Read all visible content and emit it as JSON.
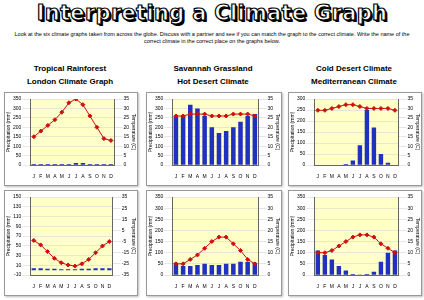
{
  "header": {
    "title": "Interpreting a Climate Graph",
    "instructions": "Look at the six climate graphs taken from across the globe.  Discuss with a partner and see if you can match the graph to the correct climate. Write the name of the correct climate in the correct place on the graphs below."
  },
  "climate_names": [
    "Tropical Rainforest",
    "Savannah Grassland",
    "Cold Desert Climate",
    "London Climate Graph",
    "Hot Desert Climate",
    "Mediterranean Climate"
  ],
  "chart_data": [
    {
      "type": "bar",
      "categories": [
        "J",
        "F",
        "M",
        "A",
        "M",
        "J",
        "J",
        "A",
        "S",
        "O",
        "N",
        "D"
      ],
      "y_label": "Precipitation (mm)",
      "y2_label": "Temperature (C)",
      "ylim": [
        0,
        350
      ],
      "yticks": [
        0,
        50,
        100,
        150,
        200,
        250,
        300,
        350
      ],
      "y2lim": [
        0,
        35
      ],
      "y2ticks": [
        0,
        5,
        10,
        15,
        20,
        25,
        30,
        35
      ],
      "grid": true,
      "series": [
        {
          "type": "bar",
          "color": "#2030c0",
          "values": [
            5,
            5,
            5,
            5,
            5,
            5,
            10,
            10,
            5,
            5,
            5,
            5
          ]
        },
        {
          "type": "line",
          "axis": "y2",
          "marker": "diamond",
          "color": "#cc1010",
          "values": [
            15,
            18,
            21,
            24,
            28,
            33,
            35,
            32,
            26,
            20,
            14,
            13
          ]
        }
      ]
    },
    {
      "type": "bar",
      "categories": [
        "J",
        "F",
        "M",
        "A",
        "M",
        "J",
        "J",
        "A",
        "S",
        "O",
        "N",
        "D"
      ],
      "y_label": "Precipitation (mm)",
      "y2_label": "Temperature (C)",
      "ylim": [
        0,
        350
      ],
      "yticks": [
        0,
        50,
        100,
        150,
        200,
        250,
        300,
        350
      ],
      "y2lim": [
        0,
        35
      ],
      "y2ticks": [
        0,
        5,
        10,
        15,
        20,
        25,
        30,
        35
      ],
      "grid": true,
      "series": [
        {
          "type": "bar",
          "color": "#2030c0",
          "values": [
            260,
            260,
            320,
            300,
            260,
            200,
            170,
            180,
            200,
            230,
            260,
            270
          ]
        },
        {
          "type": "line",
          "axis": "y2",
          "marker": "diamond",
          "color": "#cc1010",
          "values": [
            26,
            26,
            27,
            27,
            27,
            26,
            26,
            26,
            27,
            27,
            27,
            26
          ]
        }
      ]
    },
    {
      "type": "bar",
      "categories": [
        "J",
        "F",
        "M",
        "A",
        "M",
        "J",
        "J",
        "A",
        "S",
        "O",
        "N",
        "D"
      ],
      "y_label": "Precipitation (mm)",
      "y2_label": "Temperature (C)",
      "ylim": [
        0,
        300
      ],
      "yticks": [
        0,
        50,
        100,
        150,
        200,
        250,
        300
      ],
      "y2lim": [
        0,
        35
      ],
      "y2ticks": [
        0,
        5,
        10,
        15,
        20,
        25,
        30,
        35
      ],
      "grid": true,
      "series": [
        {
          "type": "bar",
          "color": "#2030c0",
          "values": [
            0,
            0,
            0,
            0,
            5,
            20,
            90,
            250,
            170,
            50,
            10,
            0
          ]
        },
        {
          "type": "line",
          "axis": "y2",
          "marker": "diamond",
          "color": "#cc1010",
          "values": [
            29,
            29,
            30,
            31,
            32,
            32,
            31,
            30,
            30,
            30,
            30,
            29
          ]
        }
      ]
    },
    {
      "type": "bar",
      "categories": [
        "J",
        "F",
        "M",
        "A",
        "M",
        "J",
        "J",
        "A",
        "S",
        "O",
        "N",
        "D"
      ],
      "y_label": "Precipitation (mm)",
      "y2_label": "Temperature (C)",
      "ylim": [
        -10,
        150
      ],
      "yticks": [
        -10,
        10,
        30,
        50,
        70,
        90,
        110,
        130,
        150
      ],
      "y2lim": [
        -35,
        35
      ],
      "y2ticks": [
        -35,
        -25,
        -15,
        -5,
        5,
        15,
        25,
        35
      ],
      "grid": true,
      "series": [
        {
          "type": "bar",
          "color": "#2030c0",
          "values": [
            4,
            4,
            3,
            3,
            2,
            2,
            2,
            3,
            3,
            4,
            4,
            4
          ]
        },
        {
          "type": "line",
          "axis": "y2",
          "marker": "diamond",
          "color": "#cc1010",
          "values": [
            -4,
            -8,
            -14,
            -20,
            -24,
            -26,
            -27,
            -25,
            -21,
            -15,
            -9,
            -5
          ]
        }
      ]
    },
    {
      "type": "bar",
      "categories": [
        "J",
        "F",
        "M",
        "A",
        "M",
        "J",
        "J",
        "A",
        "S",
        "O",
        "N",
        "D"
      ],
      "y_label": "Precipitation (mm)",
      "y2_label": "Temperature (C)",
      "ylim": [
        0,
        350
      ],
      "yticks": [
        0,
        50,
        100,
        150,
        200,
        250,
        300,
        350
      ],
      "y2lim": [
        0,
        35
      ],
      "y2ticks": [
        0,
        5,
        10,
        15,
        20,
        25,
        30,
        35
      ],
      "grid": true,
      "series": [
        {
          "type": "bar",
          "color": "#2030c0",
          "values": [
            55,
            40,
            40,
            45,
            50,
            45,
            45,
            50,
            50,
            60,
            60,
            55
          ]
        },
        {
          "type": "line",
          "axis": "y2",
          "marker": "diamond",
          "color": "#cc1010",
          "values": [
            5,
            5,
            7,
            9,
            12,
            15,
            17,
            17,
            14,
            11,
            7,
            5
          ]
        }
      ]
    },
    {
      "type": "bar",
      "categories": [
        "J",
        "F",
        "M",
        "A",
        "M",
        "J",
        "J",
        "A",
        "S",
        "O",
        "N",
        "D"
      ],
      "y_label": "Precipitation (mm)",
      "y2_label": "Temperature (C)",
      "ylim": [
        0,
        350
      ],
      "yticks": [
        0,
        50,
        100,
        150,
        200,
        250,
        300,
        350
      ],
      "y2lim": [
        0,
        35
      ],
      "y2ticks": [
        0,
        5,
        10,
        15,
        20,
        25,
        30,
        35
      ],
      "grid": true,
      "series": [
        {
          "type": "bar",
          "color": "#2030c0",
          "values": [
            110,
            90,
            70,
            40,
            20,
            5,
            2,
            5,
            15,
            60,
            100,
            110
          ]
        },
        {
          "type": "line",
          "axis": "y2",
          "marker": "diamond",
          "color": "#cc1010",
          "values": [
            10,
            10,
            11,
            13,
            15,
            17,
            18,
            18,
            17,
            14,
            12,
            10
          ]
        }
      ]
    }
  ]
}
